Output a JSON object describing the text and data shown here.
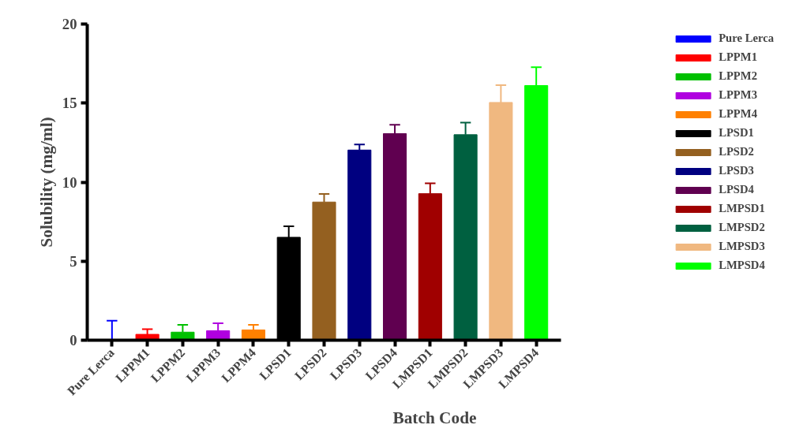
{
  "chart_data": {
    "type": "bar",
    "xlabel": "Batch Code",
    "ylabel": "Solubility (mg/ml)",
    "categories": [
      "Pure Lerca",
      "LPPM1",
      "LPPM2",
      "LPPM3",
      "LPPM4",
      "LPSD1",
      "LPSD2",
      "LPSD3",
      "LPSD4",
      "LMPSD1",
      "LMPSD2",
      "LMPSD3",
      "LMPSD4"
    ],
    "series": [
      {
        "name": "Pure Lerca",
        "color": "#0000ff",
        "values": [
          0,
          null,
          null,
          null,
          null,
          null,
          null,
          null,
          null,
          null,
          null,
          null,
          null
        ],
        "errors": [
          [
            0,
            1.23
          ],
          null,
          null,
          null,
          null,
          null,
          null,
          null,
          null,
          null,
          null,
          null,
          null
        ]
      },
      {
        "name": "LPPM1",
        "color": "#ff0000",
        "values": [
          null,
          0.37,
          null,
          null,
          null,
          null,
          null,
          null,
          null,
          null,
          null,
          null,
          null
        ],
        "errors": [
          null,
          [
            0.37,
            0.7
          ],
          null,
          null,
          null,
          null,
          null,
          null,
          null,
          null,
          null,
          null,
          null
        ]
      },
      {
        "name": "LPPM2",
        "color": "#00c000",
        "values": [
          null,
          null,
          0.51,
          null,
          null,
          null,
          null,
          null,
          null,
          null,
          null,
          null,
          null
        ],
        "errors": [
          null,
          null,
          [
            0.51,
            0.97
          ],
          null,
          null,
          null,
          null,
          null,
          null,
          null,
          null,
          null,
          null
        ]
      },
      {
        "name": "LPPM3",
        "color": "#b000e0",
        "values": [
          null,
          null,
          null,
          0.6,
          null,
          null,
          null,
          null,
          null,
          null,
          null,
          null,
          null
        ],
        "errors": [
          null,
          null,
          null,
          [
            0.6,
            1.07
          ],
          null,
          null,
          null,
          null,
          null,
          null,
          null,
          null,
          null
        ]
      },
      {
        "name": "LPPM4",
        "color": "#ff8000",
        "values": [
          null,
          null,
          null,
          null,
          0.65,
          null,
          null,
          null,
          null,
          null,
          null,
          null,
          null
        ],
        "errors": [
          null,
          null,
          null,
          null,
          [
            0.65,
            0.97
          ],
          null,
          null,
          null,
          null,
          null,
          null,
          null,
          null
        ]
      },
      {
        "name": "LPSD1",
        "color": "#000000",
        "values": [
          null,
          null,
          null,
          null,
          null,
          6.51,
          null,
          null,
          null,
          null,
          null,
          null,
          null
        ],
        "errors": [
          null,
          null,
          null,
          null,
          null,
          [
            6.51,
            7.21
          ],
          null,
          null,
          null,
          null,
          null,
          null,
          null
        ]
      },
      {
        "name": "LPSD2",
        "color": "#946020",
        "values": [
          null,
          null,
          null,
          null,
          null,
          null,
          8.74,
          null,
          null,
          null,
          null,
          null,
          null
        ],
        "errors": [
          null,
          null,
          null,
          null,
          null,
          null,
          [
            8.74,
            9.25
          ],
          null,
          null,
          null,
          null,
          null,
          null
        ]
      },
      {
        "name": "LPSD3",
        "color": "#000080",
        "values": [
          null,
          null,
          null,
          null,
          null,
          null,
          null,
          12.03,
          null,
          null,
          null,
          null,
          null
        ],
        "errors": [
          null,
          null,
          null,
          null,
          null,
          null,
          null,
          [
            12.03,
            12.38
          ],
          null,
          null,
          null,
          null,
          null
        ]
      },
      {
        "name": "LPSD4",
        "color": "#600050",
        "values": [
          null,
          null,
          null,
          null,
          null,
          null,
          null,
          null,
          13.07,
          null,
          null,
          null,
          null
        ],
        "errors": [
          null,
          null,
          null,
          null,
          null,
          null,
          null,
          null,
          [
            13.07,
            13.63
          ],
          null,
          null,
          null,
          null
        ]
      },
      {
        "name": "LMPSD1",
        "color": "#a00000",
        "values": [
          null,
          null,
          null,
          null,
          null,
          null,
          null,
          null,
          null,
          9.27,
          null,
          null,
          null
        ],
        "errors": [
          null,
          null,
          null,
          null,
          null,
          null,
          null,
          null,
          null,
          [
            9.27,
            9.92
          ],
          null,
          null,
          null
        ]
      },
      {
        "name": "LMPSD2",
        "color": "#006040",
        "values": [
          null,
          null,
          null,
          null,
          null,
          null,
          null,
          null,
          null,
          null,
          13.0,
          null,
          null
        ],
        "errors": [
          null,
          null,
          null,
          null,
          null,
          null,
          null,
          null,
          null,
          null,
          [
            13.0,
            13.77
          ],
          null,
          null
        ]
      },
      {
        "name": "LMPSD3",
        "color": "#f0b880",
        "values": [
          null,
          null,
          null,
          null,
          null,
          null,
          null,
          null,
          null,
          null,
          null,
          15.04,
          null
        ],
        "errors": [
          null,
          null,
          null,
          null,
          null,
          null,
          null,
          null,
          null,
          null,
          null,
          [
            15.04,
            16.13
          ],
          null
        ]
      },
      {
        "name": "LMPSD4",
        "color": "#00ff00",
        "values": [
          null,
          null,
          null,
          null,
          null,
          null,
          null,
          null,
          null,
          null,
          null,
          null,
          16.11
        ],
        "errors": [
          null,
          null,
          null,
          null,
          null,
          null,
          null,
          null,
          null,
          null,
          null,
          null,
          [
            16.11,
            17.27
          ]
        ]
      }
    ],
    "ylim": [
      0,
      20
    ],
    "yticks": [
      0,
      5,
      10,
      15,
      20
    ],
    "grid": false,
    "legend": "right"
  }
}
